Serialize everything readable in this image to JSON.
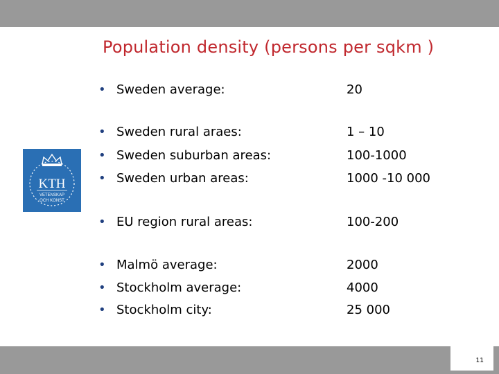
{
  "title": "Population density (persons per sqkm )",
  "bullet_glyph": "•",
  "rows": [
    {
      "label": "Sweden average:",
      "value": "20"
    },
    {
      "label": "Sweden rural araes:",
      "value": "1 – 10"
    },
    {
      "label": "Sweden suburban areas:",
      "value": "100-1000"
    },
    {
      "label": "Sweden urban areas:",
      "value": "1000 -10 000"
    },
    {
      "label": "EU region rural areas:",
      "value": "100-200"
    },
    {
      "label": "Malmö average:",
      "value": "2000"
    },
    {
      "label": "Stockholm average:",
      "value": "4000"
    },
    {
      "label": "Stockholm city:",
      "value": "25 000"
    }
  ],
  "logo": {
    "text": "KTH",
    "motto_line1": "VETENSKAP",
    "motto_line2": "OCH KONST",
    "color": "#2a6fb4"
  },
  "page_number": "11",
  "colors": {
    "title": "#c0272d",
    "bands": "#999999",
    "bullet": "#1f3f7f"
  }
}
